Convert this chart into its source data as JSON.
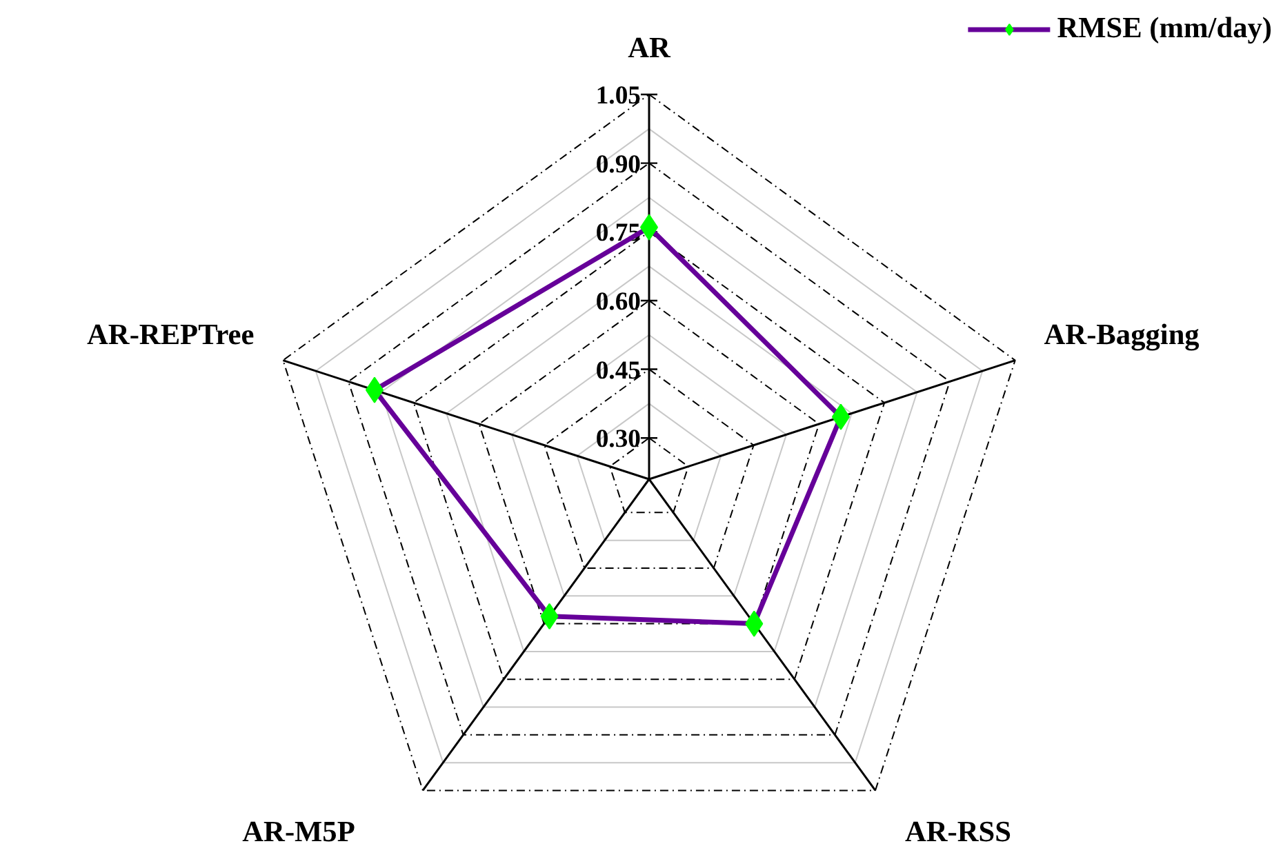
{
  "chart_data": {
    "type": "radar",
    "categories": [
      "AR",
      "AR-Bagging",
      "AR-RSS",
      "AR-M5P",
      "AR-REPTree"
    ],
    "series": [
      {
        "name": "RMSE (mm/day)",
        "color": "#660099",
        "values": [
          0.76,
          0.65,
          0.6,
          0.58,
          0.84
        ]
      }
    ],
    "ylim": [
      0.21,
      1.05
    ],
    "yticks": [
      {
        "value": 0.3,
        "label": "0.30"
      },
      0.45,
      {
        "value": 0.6,
        "label": "0.60"
      },
      0.75,
      {
        "value": 0.9,
        "label": "0.90"
      },
      1.05
    ],
    "grid": true,
    "legend": "top right",
    "marker": "diamond",
    "line_style": "solid"
  }
}
